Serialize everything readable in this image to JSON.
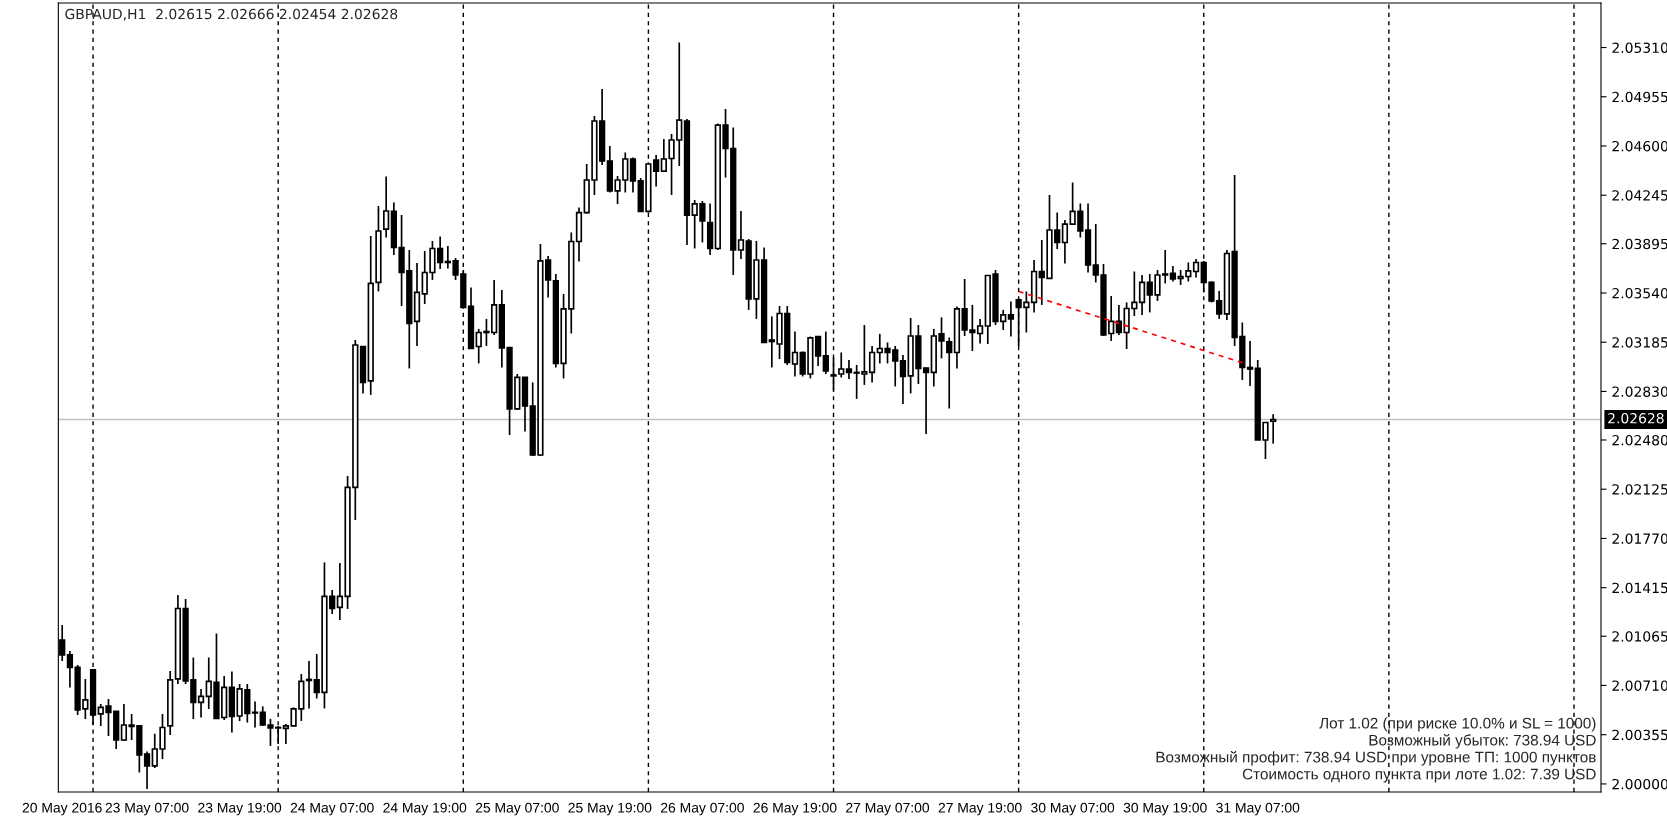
{
  "chart_data": {
    "type": "candlestick",
    "title": "GBPAUD,H1  2.02615 2.02666 2.02454 2.02628",
    "categories": [
      "20 May 2016",
      null,
      null,
      null,
      null,
      null,
      null,
      null,
      null,
      null,
      null,
      "23 May 07:00",
      null,
      null,
      null,
      null,
      null,
      null,
      null,
      null,
      null,
      null,
      null,
      "23 May 19:00",
      null,
      null,
      null,
      null,
      null,
      null,
      null,
      null,
      null,
      null,
      null,
      "24 May 07:00",
      null,
      null,
      null,
      null,
      null,
      null,
      null,
      null,
      null,
      null,
      null,
      "24 May 19:00",
      null,
      null,
      null,
      null,
      null,
      null,
      null,
      null,
      null,
      null,
      null,
      "25 May 07:00",
      null,
      null,
      null,
      null,
      null,
      null,
      null,
      null,
      null,
      null,
      null,
      "25 May 19:00",
      null,
      null,
      null,
      null,
      null,
      null,
      null,
      null,
      null,
      null,
      null,
      "26 May 07:00",
      null,
      null,
      null,
      null,
      null,
      null,
      null,
      null,
      null,
      null,
      null,
      "26 May 19:00",
      null,
      null,
      null,
      null,
      null,
      null,
      null,
      null,
      null,
      null,
      null,
      "27 May 07:00",
      null,
      null,
      null,
      null,
      null,
      null,
      null,
      null,
      null,
      null,
      null,
      "27 May 19:00",
      null,
      null,
      null,
      null,
      null,
      null,
      null,
      null,
      null,
      null,
      null,
      "30 May 07:00",
      null,
      null,
      null,
      null,
      null,
      null,
      null,
      null,
      null,
      null,
      null,
      "30 May 19:00",
      null,
      null,
      null,
      null,
      null,
      null,
      null,
      null,
      null,
      null,
      null,
      "31 May 07:00",
      null,
      null,
      null,
      null,
      null,
      null,
      null,
      null,
      null,
      null,
      null,
      null,
      null,
      null,
      null,
      null,
      null,
      null,
      null,
      null,
      null,
      null,
      null,
      null,
      null,
      null,
      null,
      null,
      null,
      null,
      null,
      null,
      null,
      null,
      null,
      null,
      null,
      null,
      null,
      null,
      null,
      null,
      null,
      null
    ],
    "series": [
      {
        "type": "candlestick",
        "color": "#000000",
        "ohlc": [
          [
            2.01038,
            2.01146,
            2.00887,
            2.0093
          ],
          [
            2.0093,
            2.00959,
            2.00696,
            2.0084
          ],
          [
            2.0084,
            2.00858,
            2.00497,
            2.00534
          ],
          [
            2.00541,
            2.00757,
            2.00469,
            2.00606
          ],
          [
            2.00822,
            2.00829,
            2.00425,
            2.00497
          ],
          [
            2.00505,
            2.00577,
            2.00418,
            2.00552
          ],
          [
            2.00562,
            2.00613,
            2.00346,
            2.00516
          ],
          [
            2.00523,
            2.00526,
            2.00252,
            2.00317
          ],
          [
            2.00317,
            2.00577,
            2.0031,
            2.00425
          ],
          [
            2.00425,
            2.00505,
            2.00317,
            2.00415
          ],
          [
            2.00418,
            2.00425,
            2.00083,
            2.00209
          ],
          [
            2.00216,
            2.00234,
            1.99964,
            2.0013
          ],
          [
            2.0013,
            2.00361,
            2.00115,
            2.00252
          ],
          [
            2.00252,
            2.00505,
            2.0018,
            2.00407
          ],
          [
            2.00418,
            2.00815,
            2.00353,
            2.0075
          ],
          [
            2.00757,
            2.01363,
            2.00721,
            2.01265
          ],
          [
            2.01265,
            2.01334,
            2.00721,
            2.00743
          ],
          [
            2.0075,
            2.00912,
            2.00469,
            2.00588
          ],
          [
            2.00588,
            2.00685,
            2.00479,
            2.00631
          ],
          [
            2.00631,
            2.00912,
            2.00541,
            2.00739
          ],
          [
            2.00732,
            2.01085,
            2.00469,
            2.00472
          ],
          [
            2.00479,
            2.00779,
            2.00461,
            2.00696
          ],
          [
            2.00696,
            2.00811,
            2.00371,
            2.00487
          ],
          [
            2.0049,
            2.00721,
            2.00454,
            2.00685
          ],
          [
            2.00678,
            2.00721,
            2.00443,
            2.00508
          ],
          [
            2.00516,
            2.00595,
            2.00407,
            2.00512
          ],
          [
            2.00516,
            2.00559,
            2.00418,
            2.00425
          ],
          [
            2.00425,
            2.00469,
            2.00274,
            2.00404
          ],
          [
            2.00407,
            2.00418,
            2.00288,
            2.00404
          ],
          [
            2.004,
            2.00432,
            2.00288,
            2.00418
          ],
          [
            2.00418,
            2.00552,
            2.00415,
            2.00541
          ],
          [
            2.00541,
            2.00793,
            2.00454,
            2.00739
          ],
          [
            2.00746,
            2.00887,
            2.00544,
            2.00753
          ],
          [
            2.0075,
            2.00937,
            2.00616,
            2.0066
          ],
          [
            2.0066,
            2.01597,
            2.00544,
            2.01352
          ],
          [
            2.01352,
            2.01399,
            2.01226,
            2.01265
          ],
          [
            2.01273,
            2.01593,
            2.01182,
            2.01352
          ],
          [
            2.01352,
            2.02221,
            2.01262,
            2.02138
          ],
          [
            2.02138,
            2.03201,
            2.01903,
            2.03165
          ],
          [
            2.03154,
            2.03158,
            2.02816,
            2.02895
          ],
          [
            2.02906,
            2.03951,
            2.02805,
            2.03609
          ],
          [
            2.03616,
            2.04167,
            2.03551,
            2.03987
          ],
          [
            2.04001,
            2.0438,
            2.0394,
            2.04131
          ],
          [
            2.04128,
            2.04193,
            2.03814,
            2.03868
          ],
          [
            2.03868,
            2.04102,
            2.03446,
            2.03688
          ],
          [
            2.03699,
            2.0385,
            2.02996,
            2.0332
          ],
          [
            2.03335,
            2.03756,
            2.03158,
            2.03544
          ],
          [
            2.03533,
            2.03843,
            2.03461,
            2.03688
          ],
          [
            2.03688,
            2.03915,
            2.03634,
            2.03861
          ],
          [
            2.03861,
            2.03947,
            2.03713,
            2.0376
          ],
          [
            2.03767,
            2.03879,
            2.03717,
            2.0376
          ],
          [
            2.03771,
            2.03792,
            2.03634,
            2.0367
          ],
          [
            2.03677,
            2.03706,
            2.03432,
            2.03436
          ],
          [
            2.03443,
            2.0358,
            2.03136,
            2.0314
          ],
          [
            2.03154,
            2.03281,
            2.03032,
            2.03255
          ],
          [
            2.03255,
            2.03353,
            2.03158,
            2.03262
          ],
          [
            2.03255,
            2.03634,
            2.03237,
            2.03454
          ],
          [
            2.03454,
            2.03562,
            2.03003,
            2.03144
          ],
          [
            2.03147,
            2.03151,
            2.02516,
            2.02704
          ],
          [
            2.02704,
            2.02956,
            2.02697,
            2.02931
          ],
          [
            2.02931,
            2.02935,
            2.02542,
            2.02725
          ],
          [
            2.02725,
            2.02895,
            2.02365,
            2.02372
          ],
          [
            2.02372,
            2.03893,
            2.02365,
            2.03771
          ],
          [
            2.03778,
            2.03807,
            2.03508,
            2.03634
          ],
          [
            2.03627,
            2.03677,
            2.03003,
            2.03032
          ],
          [
            2.03032,
            2.03533,
            2.02924,
            2.03425
          ],
          [
            2.03425,
            2.03976,
            2.03248,
            2.03911
          ],
          [
            2.03911,
            2.04156,
            2.03767,
            2.0412
          ],
          [
            2.0412,
            2.0447,
            2.04113,
            2.04355
          ],
          [
            2.04355,
            2.04816,
            2.04247,
            2.0478
          ],
          [
            2.0478,
            2.05011,
            2.04463,
            2.04492
          ],
          [
            2.04492,
            2.046,
            2.04265,
            2.04276
          ],
          [
            2.04276,
            2.04384,
            2.04182,
            2.04355
          ],
          [
            2.04355,
            2.04553,
            2.04265,
            2.04506
          ],
          [
            2.04506,
            2.04517,
            2.04265,
            2.04348
          ],
          [
            2.04348,
            2.04369,
            2.04128,
            2.04128
          ],
          [
            2.04128,
            2.04481,
            2.0412,
            2.0447
          ],
          [
            2.04499,
            2.04535,
            2.04308,
            2.04419
          ],
          [
            2.04419,
            2.0465,
            2.04416,
            2.04506
          ],
          [
            2.0451,
            2.04686,
            2.04247,
            2.04643
          ],
          [
            2.04643,
            2.05346,
            2.04456,
            2.04787
          ],
          [
            2.0478,
            2.04795,
            2.03886,
            2.04102
          ],
          [
            2.04102,
            2.04211,
            2.03861,
            2.04182
          ],
          [
            2.04182,
            2.04204,
            2.03904,
            2.04059
          ],
          [
            2.04048,
            2.04185,
            2.03814,
            2.03861
          ],
          [
            2.03861,
            2.04762,
            2.0385,
            2.04751
          ],
          [
            2.04751,
            2.04867,
            2.04373,
            2.04582
          ],
          [
            2.04582,
            2.04733,
            2.0367,
            2.0385
          ],
          [
            2.0385,
            2.04131,
            2.03785,
            2.03922
          ],
          [
            2.03915,
            2.03929,
            2.03418,
            2.03497
          ],
          [
            2.03497,
            2.03915,
            2.03353,
            2.03778
          ],
          [
            2.03778,
            2.03868,
            2.03183,
            2.03183
          ],
          [
            2.03201,
            2.03371,
            2.03003,
            2.0319
          ],
          [
            2.03172,
            2.03446,
            2.03064,
            2.03392
          ],
          [
            2.03392,
            2.03446,
            2.03021,
            2.03039
          ],
          [
            2.03028,
            2.03262,
            2.02938,
            2.03111
          ],
          [
            2.03111,
            2.03118,
            2.02938,
            2.02956
          ],
          [
            2.02956,
            2.03226,
            2.02924,
            2.03216
          ],
          [
            2.03226,
            2.0323,
            2.03014,
            2.03086
          ],
          [
            2.03086,
            2.03262,
            2.02956,
            2.02978
          ],
          [
            2.02949,
            2.03075,
            2.02841,
            2.02942
          ],
          [
            2.02956,
            2.03111,
            2.02931,
            2.02992
          ],
          [
            2.02992,
            2.03057,
            2.0292,
            2.02967
          ],
          [
            2.02967,
            2.03021,
            2.02776,
            2.02963
          ],
          [
            2.02956,
            2.03309,
            2.02877,
            2.02971
          ],
          [
            2.02967,
            2.03158,
            2.02895,
            2.03111
          ],
          [
            2.03111,
            2.03245,
            2.03032,
            2.0314
          ],
          [
            2.0314,
            2.03183,
            2.03032,
            2.03111
          ],
          [
            2.03129,
            2.03158,
            2.02866,
            2.0305
          ],
          [
            2.0305,
            2.03093,
            2.0274,
            2.02938
          ],
          [
            2.02942,
            2.0336,
            2.02816,
            2.0323
          ],
          [
            2.0323,
            2.03309,
            2.02884,
            2.02996
          ],
          [
            2.02999,
            2.03003,
            2.02523,
            2.02967
          ],
          [
            2.02967,
            2.03281,
            2.02866,
            2.0323
          ],
          [
            2.03245,
            2.03364,
            2.03068,
            2.03194
          ],
          [
            2.03187,
            2.03219,
            2.02707,
            2.03111
          ],
          [
            2.03111,
            2.03443,
            2.02996,
            2.03425
          ],
          [
            2.03425,
            2.03641,
            2.0323,
            2.03273
          ],
          [
            2.03273,
            2.03454,
            2.03122,
            2.03255
          ],
          [
            2.03248,
            2.03353,
            2.03176,
            2.03302
          ],
          [
            2.03302,
            2.0367,
            2.03172,
            2.03666
          ],
          [
            2.03677,
            2.03706,
            2.03309,
            2.03335
          ],
          [
            2.03335,
            2.03418,
            2.03273,
            2.03382
          ],
          [
            2.03382,
            2.03479,
            2.03226,
            2.03353
          ],
          [
            2.0349,
            2.035,
            2.03154,
            2.03436
          ],
          [
            2.03436,
            2.03551,
            2.03255,
            2.03472
          ],
          [
            2.03472,
            2.03778,
            2.034,
            2.03695
          ],
          [
            2.03695,
            2.03922,
            2.03454,
            2.03652
          ],
          [
            2.03645,
            2.04247,
            2.03641,
            2.03994
          ],
          [
            2.03994,
            2.0412,
            2.03857,
            2.03904
          ],
          [
            2.03904,
            2.04066,
            2.03753,
            2.04037
          ],
          [
            2.04037,
            2.04337,
            2.0403,
            2.04128
          ],
          [
            2.04128,
            2.04185,
            2.0394,
            2.03987
          ],
          [
            2.03994,
            2.04185,
            2.03688,
            2.03742
          ],
          [
            2.03742,
            2.04037,
            2.03616,
            2.0367
          ],
          [
            2.0367,
            2.03749,
            2.0323,
            2.03237
          ],
          [
            2.03248,
            2.03518,
            2.03194,
            2.03335
          ],
          [
            2.03335,
            2.03454,
            2.03237,
            2.03255
          ],
          [
            2.03255,
            2.03472,
            2.03136,
            2.03428
          ],
          [
            2.03428,
            2.03695,
            2.03374,
            2.03472
          ],
          [
            2.03472,
            2.0367,
            2.03382,
            2.03616
          ],
          [
            2.03616,
            2.03677,
            2.034,
            2.03526
          ],
          [
            2.03526,
            2.03706,
            2.03483,
            2.0367
          ],
          [
            2.03677,
            2.0385,
            2.03609,
            2.0367
          ],
          [
            2.03681,
            2.03735,
            2.03623,
            2.03641
          ],
          [
            2.03645,
            2.03706,
            2.03598,
            2.03659
          ],
          [
            2.03659,
            2.0376,
            2.03623,
            2.03699
          ],
          [
            2.03695,
            2.03785,
            2.03652,
            2.0376
          ],
          [
            2.0376,
            2.03771,
            2.03544,
            2.03616
          ],
          [
            2.03616,
            2.03623,
            2.03472,
            2.03483
          ],
          [
            2.03483,
            2.03555,
            2.03353,
            2.03389
          ],
          [
            2.03389,
            2.0385,
            2.03346,
            2.03825
          ],
          [
            2.03839,
            2.04391,
            2.03158,
            2.03219
          ],
          [
            2.03226,
            2.03327,
            2.02913,
            2.03003
          ],
          [
            2.03003,
            2.03194,
            2.0287,
            2.02992
          ],
          [
            2.02996,
            2.03057,
            2.0248,
            2.0248
          ],
          [
            2.0248,
            2.02606,
            2.02343,
            2.02606
          ],
          [
            2.02615,
            2.02666,
            2.02454,
            2.02628
          ],
          null,
          null,
          null,
          null,
          null,
          null,
          null,
          null,
          null,
          null,
          null,
          null,
          null,
          null,
          null,
          null,
          null,
          null,
          null,
          null,
          null,
          null,
          null,
          null,
          null,
          null,
          null,
          null,
          null,
          null,
          null,
          null,
          null,
          null,
          null,
          null,
          null,
          null,
          null,
          null,
          null,
          null
        ]
      },
      {
        "type": "line",
        "values": [
          null,
          null,
          null,
          null,
          null,
          null,
          null,
          null,
          null,
          null,
          null,
          null,
          null,
          null,
          null,
          null,
          null,
          null,
          null,
          null,
          null,
          null,
          null,
          null,
          null,
          null,
          null,
          null,
          null,
          null,
          null,
          null,
          null,
          null,
          null,
          null,
          null,
          null,
          null,
          null,
          null,
          null,
          null,
          null,
          null,
          null,
          null,
          null,
          null,
          null,
          null,
          null,
          null,
          null,
          null,
          null,
          null,
          null,
          null,
          null,
          null,
          null,
          null,
          null,
          null,
          null,
          null,
          null,
          null,
          null,
          null,
          null,
          null,
          null,
          null,
          null,
          null,
          null,
          null,
          null,
          null,
          null,
          null,
          null,
          null,
          null,
          null,
          null,
          null,
          null,
          null,
          null,
          null,
          null,
          null,
          null,
          null,
          null,
          null,
          null,
          null,
          null,
          null,
          null,
          null,
          null,
          null,
          null,
          null,
          null,
          null,
          null,
          null,
          null,
          null,
          null,
          null,
          null,
          null,
          null,
          null,
          null,
          null,
          null,
          2.03551,
          null,
          null,
          null,
          null,
          null,
          null,
          null,
          null,
          null,
          null,
          null,
          null,
          null,
          null,
          null,
          null,
          null,
          null,
          null,
          null,
          null,
          null,
          null,
          null,
          null,
          null,
          null,
          null,
          2.03037,
          null,
          null,
          null,
          null,
          null,
          null,
          null,
          null,
          null,
          null,
          null,
          null,
          null,
          null,
          null,
          null,
          null,
          null,
          null,
          null,
          null,
          null,
          null,
          null,
          null,
          null,
          null,
          null,
          null,
          null,
          null,
          null,
          null,
          null,
          null,
          null,
          null,
          null,
          null,
          null,
          null,
          null,
          null,
          null,
          null,
          null
        ],
        "color": "#ff0000",
        "line_style": "dashed"
      }
    ],
    "ylim": [
      1.99942,
      2.05631
    ],
    "yticks": [
      {
        "value": 2.0,
        "label": "2.00000"
      },
      {
        "value": 2.00355,
        "label": "2.00355"
      },
      {
        "value": 2.0071,
        "label": "2.00710"
      },
      {
        "value": 2.01065,
        "label": "2.01065"
      },
      {
        "value": 2.01415,
        "label": "2.01415"
      },
      {
        "value": 2.0177,
        "label": "2.01770"
      },
      {
        "value": 2.02125,
        "label": "2.02125"
      },
      {
        "value": 2.0248,
        "label": "2.02480"
      },
      {
        "value": 2.0283,
        "label": "2.02830"
      },
      {
        "value": 2.03185,
        "label": "2.03185"
      },
      {
        "value": 2.0354,
        "label": "2.03540"
      },
      {
        "value": 2.03895,
        "label": "2.03895"
      },
      {
        "value": 2.04245,
        "label": "2.04245"
      },
      {
        "value": 2.046,
        "label": "2.04600"
      },
      {
        "value": 2.04955,
        "label": "2.04955"
      },
      {
        "value": 2.0531,
        "label": "2.05310"
      }
    ],
    "ref_lines": [
      {
        "axis": "y",
        "value": 2.02628,
        "label": "2.02628",
        "color": "#c0c0c0",
        "line_style": "solid"
      }
    ],
    "annotations": [
      "Лот 1.02 (при риске 10.0% и SL = 1000)",
      "Возможный убыток: 738.94 USD",
      "Возможный профит: 738.94 USD при уровне ТП: 1000 пунктов",
      "Стоимость одного пункта при лоте 1.02: 7.39 USD"
    ]
  }
}
